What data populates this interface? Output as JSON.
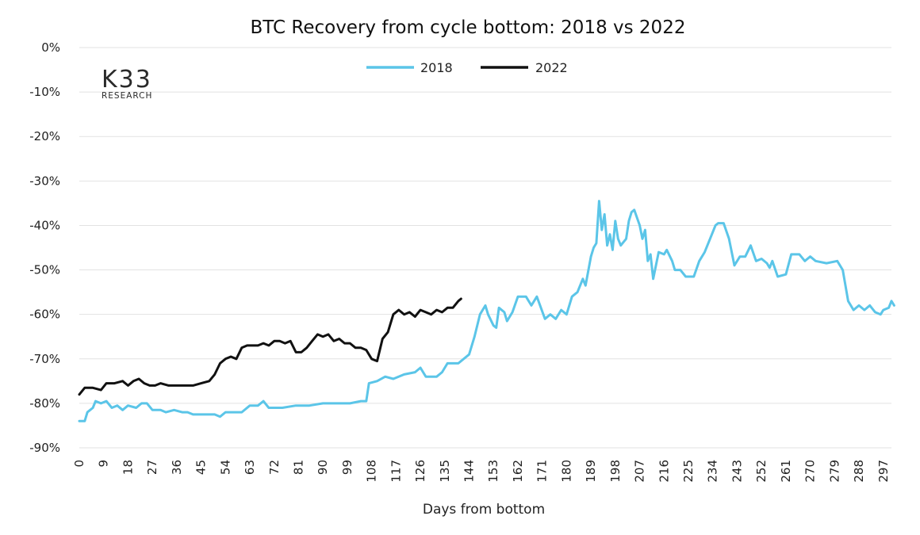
{
  "logo": {
    "main": "K33",
    "sub": "RESEARCH"
  },
  "colors": {
    "series_2018": "#5bc5e8",
    "series_2022": "#111111",
    "grid": "#e2e2e2"
  },
  "chart_data": {
    "type": "line",
    "title": "BTC Recovery from cycle bottom: 2018 vs 2022",
    "xlabel": "Days from bottom",
    "ylabel": "",
    "xlim": [
      0,
      300
    ],
    "ylim": [
      -90,
      0
    ],
    "grid": true,
    "legend_position": "top-center",
    "y_ticks": [
      "0%",
      "-10%",
      "-20%",
      "-30%",
      "-40%",
      "-50%",
      "-60%",
      "-70%",
      "-80%",
      "-90%"
    ],
    "x_ticks": [
      "0",
      "9",
      "18",
      "27",
      "36",
      "45",
      "54",
      "63",
      "72",
      "81",
      "90",
      "99",
      "108",
      "117",
      "126",
      "135",
      "144",
      "153",
      "162",
      "171",
      "180",
      "189",
      "198",
      "207",
      "216",
      "225",
      "234",
      "243",
      "252",
      "261",
      "270",
      "279",
      "288",
      "297"
    ],
    "series": [
      {
        "name": "2018",
        "points": [
          [
            0,
            -84
          ],
          [
            2,
            -84
          ],
          [
            3,
            -82
          ],
          [
            5,
            -81
          ],
          [
            6,
            -79.5
          ],
          [
            8,
            -80
          ],
          [
            10,
            -79.5
          ],
          [
            12,
            -81
          ],
          [
            14,
            -80.5
          ],
          [
            16,
            -81.5
          ],
          [
            18,
            -80.5
          ],
          [
            21,
            -81
          ],
          [
            23,
            -80
          ],
          [
            25,
            -80
          ],
          [
            27,
            -81.5
          ],
          [
            30,
            -81.5
          ],
          [
            32,
            -82
          ],
          [
            35,
            -81.5
          ],
          [
            38,
            -82
          ],
          [
            40,
            -82
          ],
          [
            42,
            -82.5
          ],
          [
            46,
            -82.5
          ],
          [
            50,
            -82.5
          ],
          [
            52,
            -83
          ],
          [
            54,
            -82
          ],
          [
            57,
            -82
          ],
          [
            60,
            -82
          ],
          [
            63,
            -80.5
          ],
          [
            66,
            -80.5
          ],
          [
            68,
            -79.5
          ],
          [
            70,
            -81
          ],
          [
            75,
            -81
          ],
          [
            80,
            -80.5
          ],
          [
            85,
            -80.5
          ],
          [
            90,
            -80
          ],
          [
            95,
            -80
          ],
          [
            100,
            -80
          ],
          [
            104,
            -79.5
          ],
          [
            106,
            -79.5
          ],
          [
            107,
            -75.5
          ],
          [
            110,
            -75
          ],
          [
            113,
            -74
          ],
          [
            116,
            -74.5
          ],
          [
            120,
            -73.5
          ],
          [
            124,
            -73
          ],
          [
            126,
            -72
          ],
          [
            128,
            -74
          ],
          [
            132,
            -74
          ],
          [
            134,
            -73
          ],
          [
            136,
            -71
          ],
          [
            140,
            -71
          ],
          [
            144,
            -69
          ],
          [
            146,
            -65
          ],
          [
            148,
            -60
          ],
          [
            150,
            -58
          ],
          [
            151,
            -60
          ],
          [
            153,
            -62.5
          ],
          [
            154,
            -63
          ],
          [
            155,
            -58.5
          ],
          [
            157,
            -59.5
          ],
          [
            158,
            -61.5
          ],
          [
            160,
            -59.5
          ],
          [
            162,
            -56
          ],
          [
            165,
            -56
          ],
          [
            167,
            -58
          ],
          [
            169,
            -56
          ],
          [
            172,
            -61
          ],
          [
            174,
            -60
          ],
          [
            176,
            -61
          ],
          [
            178,
            -59
          ],
          [
            180,
            -60
          ],
          [
            182,
            -56
          ],
          [
            184,
            -55
          ],
          [
            186,
            -52
          ],
          [
            187,
            -53.5
          ],
          [
            189,
            -47
          ],
          [
            190,
            -45
          ],
          [
            191,
            -44
          ],
          [
            192,
            -34.5
          ],
          [
            193,
            -41
          ],
          [
            194,
            -37.5
          ],
          [
            195,
            -44.5
          ],
          [
            196,
            -42
          ],
          [
            197,
            -45.5
          ],
          [
            198,
            -39
          ],
          [
            199,
            -43
          ],
          [
            200,
            -44.5
          ],
          [
            202,
            -43
          ],
          [
            203,
            -39
          ],
          [
            204,
            -37
          ],
          [
            205,
            -36.5
          ],
          [
            207,
            -40
          ],
          [
            208,
            -43
          ],
          [
            209,
            -41
          ],
          [
            210,
            -48
          ],
          [
            211,
            -46.5
          ],
          [
            212,
            -52
          ],
          [
            214,
            -46
          ],
          [
            216,
            -46.5
          ],
          [
            217,
            -45.5
          ],
          [
            219,
            -48
          ],
          [
            220,
            -50
          ],
          [
            222,
            -50
          ],
          [
            224,
            -51.5
          ],
          [
            227,
            -51.5
          ],
          [
            229,
            -48
          ],
          [
            231,
            -46
          ],
          [
            233,
            -43
          ],
          [
            235,
            -40
          ],
          [
            236,
            -39.5
          ],
          [
            238,
            -39.5
          ],
          [
            240,
            -43
          ],
          [
            242,
            -49
          ],
          [
            244,
            -47
          ],
          [
            246,
            -47
          ],
          [
            248,
            -44.5
          ],
          [
            250,
            -48
          ],
          [
            252,
            -47.5
          ],
          [
            254,
            -48.5
          ],
          [
            255,
            -49.5
          ],
          [
            256,
            -48
          ],
          [
            258,
            -51.5
          ],
          [
            261,
            -51
          ],
          [
            263,
            -46.5
          ],
          [
            266,
            -46.5
          ],
          [
            268,
            -48
          ],
          [
            270,
            -47
          ],
          [
            272,
            -48
          ],
          [
            276,
            -48.5
          ],
          [
            280,
            -48
          ],
          [
            282,
            -50
          ],
          [
            284,
            -57
          ],
          [
            286,
            -59
          ],
          [
            288,
            -58
          ],
          [
            290,
            -59
          ],
          [
            292,
            -58
          ],
          [
            294,
            -59.5
          ],
          [
            296,
            -60
          ],
          [
            297,
            -59
          ],
          [
            299,
            -58.5
          ],
          [
            300,
            -57
          ],
          [
            301,
            -58
          ]
        ]
      },
      {
        "name": "2022",
        "points": [
          [
            0,
            -78
          ],
          [
            2,
            -76.5
          ],
          [
            5,
            -76.5
          ],
          [
            8,
            -77
          ],
          [
            10,
            -75.5
          ],
          [
            13,
            -75.5
          ],
          [
            16,
            -75
          ],
          [
            18,
            -76
          ],
          [
            20,
            -75
          ],
          [
            22,
            -74.5
          ],
          [
            24,
            -75.5
          ],
          [
            26,
            -76
          ],
          [
            28,
            -76
          ],
          [
            30,
            -75.5
          ],
          [
            33,
            -76
          ],
          [
            36,
            -76
          ],
          [
            39,
            -76
          ],
          [
            42,
            -76
          ],
          [
            45,
            -75.5
          ],
          [
            48,
            -75
          ],
          [
            50,
            -73.5
          ],
          [
            52,
            -71
          ],
          [
            54,
            -70
          ],
          [
            56,
            -69.5
          ],
          [
            58,
            -70
          ],
          [
            60,
            -67.5
          ],
          [
            62,
            -67
          ],
          [
            64,
            -67
          ],
          [
            66,
            -67
          ],
          [
            68,
            -66.5
          ],
          [
            70,
            -67
          ],
          [
            72,
            -66
          ],
          [
            74,
            -66
          ],
          [
            76,
            -66.5
          ],
          [
            78,
            -66
          ],
          [
            80,
            -68.5
          ],
          [
            82,
            -68.5
          ],
          [
            84,
            -67.5
          ],
          [
            86,
            -66
          ],
          [
            88,
            -64.5
          ],
          [
            90,
            -65
          ],
          [
            92,
            -64.5
          ],
          [
            94,
            -66
          ],
          [
            96,
            -65.5
          ],
          [
            98,
            -66.5
          ],
          [
            100,
            -66.5
          ],
          [
            102,
            -67.5
          ],
          [
            104,
            -67.5
          ],
          [
            106,
            -68
          ],
          [
            108,
            -70
          ],
          [
            110,
            -70.5
          ],
          [
            112,
            -65.5
          ],
          [
            114,
            -64
          ],
          [
            116,
            -60
          ],
          [
            118,
            -59
          ],
          [
            120,
            -60
          ],
          [
            122,
            -59.5
          ],
          [
            124,
            -60.5
          ],
          [
            126,
            -59
          ],
          [
            128,
            -59.5
          ],
          [
            130,
            -60
          ],
          [
            132,
            -59
          ],
          [
            134,
            -59.5
          ],
          [
            136,
            -58.5
          ],
          [
            138,
            -58.5
          ],
          [
            140,
            -57
          ],
          [
            141,
            -56.5
          ]
        ]
      }
    ]
  }
}
